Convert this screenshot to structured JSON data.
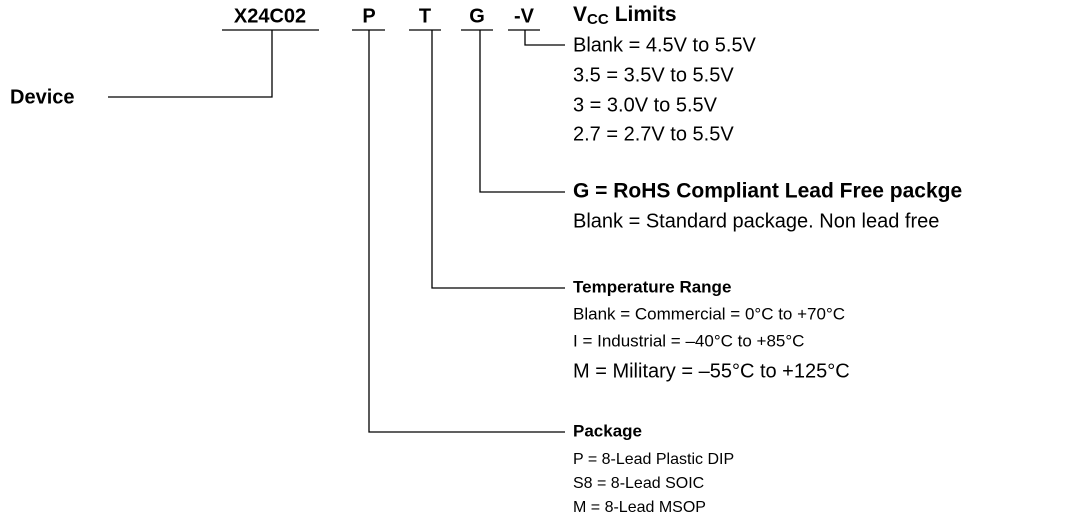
{
  "part_code": [
    "X24C02",
    "P",
    "T",
    "G",
    "-V"
  ],
  "device_label": "Device",
  "groups": [
    {
      "title": {
        "main": "V",
        "sub": "CC",
        "rest": "Limits"
      },
      "items": [
        "Blank = 4.5V to 5.5V",
        "3.5 = 3.5V to 5.5V",
        "3 = 3.0V to 5.5V",
        "2.7 = 2.7V to 5.5V"
      ]
    },
    {
      "title": "G = RoHS Compliant Lead Free packge",
      "items": [
        "Blank = Standard package. Non lead free"
      ]
    },
    {
      "title": "Temperature Range",
      "items": [
        "Blank = Commercial = 0°C to +70°C",
        "I = Industrial = –40°C to +85°C",
        "M = Military = –55°C to +125°C"
      ]
    },
    {
      "title": "Package",
      "items": [
        "P = 8-Lead Plastic DIP",
        "S8 = 8-Lead SOIC",
        "M = 8-Lead MSOP"
      ]
    }
  ]
}
